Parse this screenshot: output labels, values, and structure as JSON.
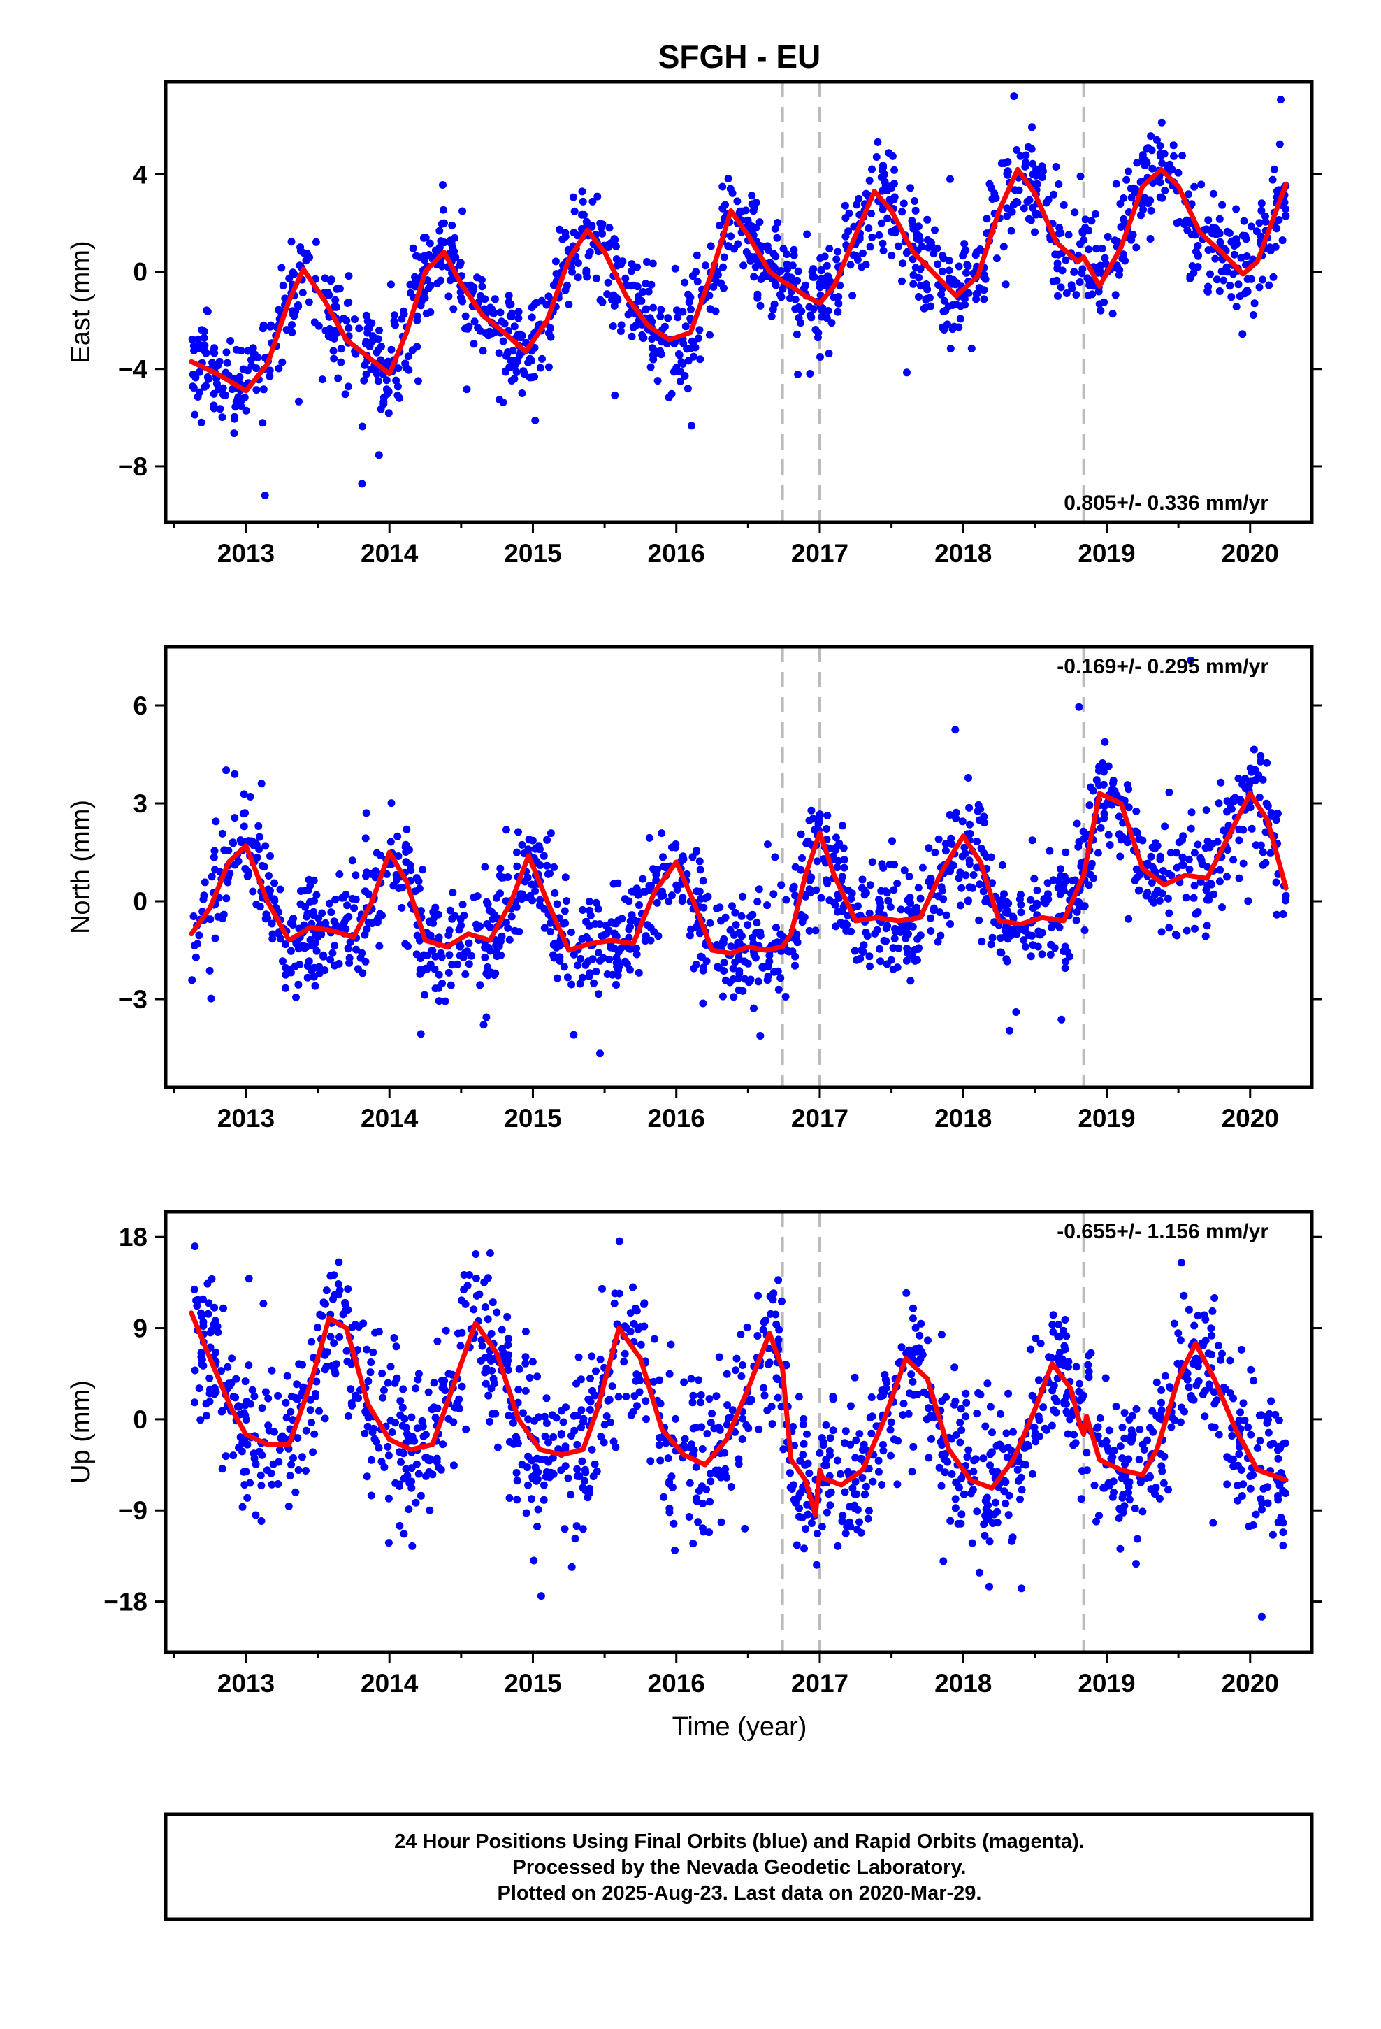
{
  "figure": {
    "title": "SFGH - EU",
    "xlabel": "Time (year)",
    "footer": [
      "24 Hour Positions Using Final Orbits (blue) and Rapid Orbits (magenta).",
      "Processed by the Nevada Geodetic Laboratory.",
      "Plotted on 2025-Aug-23. Last data on 2020-Mar-29."
    ],
    "colors": {
      "points": "#0000ff",
      "fit": "#ff0000",
      "breaks": "#bbbbbb"
    }
  },
  "chart_data": [
    {
      "type": "scatter",
      "name": "east",
      "ylabel": "East (mm)",
      "rate_label": "0.805+/- 0.336 mm/yr",
      "rate_placement": "bottom-right",
      "xlim": [
        2012.44,
        2020.43
      ],
      "ylim": [
        -10.3,
        7.8
      ],
      "xticks": [
        2013,
        2014,
        2015,
        2016,
        2017,
        2018,
        2019,
        2020
      ],
      "yticks": [
        4,
        0,
        -4,
        -8
      ],
      "break_lines": [
        2016.74,
        2017.0,
        2018.84
      ],
      "fit_line": {
        "x": [
          2012.62,
          2012.8,
          2013.0,
          2013.15,
          2013.3,
          2013.4,
          2013.55,
          2013.7,
          2013.85,
          2014.0,
          2014.12,
          2014.25,
          2014.38,
          2014.5,
          2014.65,
          2014.8,
          2014.95,
          2015.1,
          2015.25,
          2015.38,
          2015.5,
          2015.65,
          2015.8,
          2015.95,
          2016.1,
          2016.25,
          2016.38,
          2016.5,
          2016.65,
          2016.74,
          2016.8,
          2016.9,
          2017.0,
          2017.1,
          2017.25,
          2017.38,
          2017.5,
          2017.65,
          2017.8,
          2017.95,
          2018.1,
          2018.25,
          2018.38,
          2018.5,
          2018.65,
          2018.8,
          2018.84,
          2018.95,
          2019.1,
          2019.25,
          2019.38,
          2019.5,
          2019.65,
          2019.8,
          2019.95,
          2020.05,
          2020.15,
          2020.25
        ],
        "y": [
          -3.7,
          -4.2,
          -4.9,
          -3.8,
          -1.2,
          0.1,
          -1.2,
          -2.8,
          -3.5,
          -4.2,
          -2.5,
          0.0,
          0.8,
          -0.5,
          -1.8,
          -2.5,
          -3.3,
          -2.0,
          0.5,
          1.7,
          0.8,
          -1.0,
          -2.2,
          -2.8,
          -2.5,
          0.0,
          2.5,
          1.5,
          0.0,
          -0.4,
          -0.6,
          -1.0,
          -1.3,
          -0.6,
          1.5,
          3.3,
          2.5,
          0.8,
          -0.1,
          -1.0,
          -0.2,
          2.5,
          4.2,
          3.2,
          1.2,
          0.4,
          0.6,
          -0.6,
          1.0,
          3.5,
          4.2,
          3.5,
          1.6,
          0.8,
          -0.1,
          0.4,
          2.0,
          3.6
        ]
      }
    },
    {
      "type": "scatter",
      "name": "north",
      "ylabel": "North (mm)",
      "rate_label": "-0.169+/- 0.295 mm/yr",
      "rate_placement": "top-right",
      "xlim": [
        2012.44,
        2020.43
      ],
      "ylim": [
        -5.7,
        7.8
      ],
      "xticks": [
        2013,
        2014,
        2015,
        2016,
        2017,
        2018,
        2019,
        2020
      ],
      "yticks": [
        6,
        3,
        0,
        -3
      ],
      "break_lines": [
        2016.74,
        2017.0,
        2018.84
      ],
      "fit_line": {
        "x": [
          2012.62,
          2012.75,
          2012.88,
          2013.0,
          2013.15,
          2013.3,
          2013.45,
          2013.6,
          2013.75,
          2013.88,
          2014.0,
          2014.12,
          2014.25,
          2014.4,
          2014.55,
          2014.7,
          2014.85,
          2014.97,
          2015.1,
          2015.25,
          2015.4,
          2015.55,
          2015.7,
          2015.85,
          2016.0,
          2016.12,
          2016.25,
          2016.38,
          2016.5,
          2016.62,
          2016.74,
          2016.8,
          2016.9,
          2017.0,
          2017.1,
          2017.25,
          2017.4,
          2017.55,
          2017.7,
          2017.85,
          2018.0,
          2018.12,
          2018.25,
          2018.4,
          2018.55,
          2018.7,
          2018.84,
          2018.95,
          2019.1,
          2019.25,
          2019.4,
          2019.55,
          2019.7,
          2019.85,
          2020.0,
          2020.12,
          2020.25
        ],
        "y": [
          -1.0,
          -0.2,
          1.2,
          1.7,
          0.0,
          -1.2,
          -0.8,
          -0.9,
          -1.1,
          0.0,
          1.5,
          0.6,
          -1.2,
          -1.4,
          -1.0,
          -1.2,
          0.0,
          1.4,
          0.0,
          -1.5,
          -1.3,
          -1.2,
          -1.3,
          0.3,
          1.2,
          0.0,
          -1.5,
          -1.6,
          -1.4,
          -1.5,
          -1.4,
          -1.0,
          0.8,
          2.1,
          0.8,
          -0.6,
          -0.5,
          -0.6,
          -0.5,
          0.9,
          2.0,
          1.2,
          -0.6,
          -0.7,
          -0.5,
          -0.6,
          0.8,
          3.3,
          3.0,
          1.0,
          0.5,
          0.8,
          0.7,
          2.0,
          3.3,
          2.5,
          0.4
        ]
      }
    },
    {
      "type": "scatter",
      "name": "up",
      "ylabel": "Up (mm)",
      "rate_label": "-0.655+/- 1.156 mm/yr",
      "rate_placement": "top-right",
      "xlim": [
        2012.44,
        2020.43
      ],
      "ylim": [
        -23.0,
        20.5
      ],
      "xticks": [
        2013,
        2014,
        2015,
        2016,
        2017,
        2018,
        2019,
        2020
      ],
      "yticks": [
        18,
        9,
        0,
        -9,
        -18
      ],
      "break_lines": [
        2016.74,
        2017.0,
        2018.84
      ],
      "fit_line": {
        "x": [
          2012.62,
          2012.75,
          2012.9,
          2013.0,
          2013.15,
          2013.3,
          2013.45,
          2013.58,
          2013.7,
          2013.85,
          2014.0,
          2014.15,
          2014.3,
          2014.45,
          2014.6,
          2014.75,
          2014.9,
          2015.05,
          2015.2,
          2015.35,
          2015.45,
          2015.6,
          2015.75,
          2015.9,
          2016.05,
          2016.2,
          2016.35,
          2016.5,
          2016.65,
          2016.74,
          2016.8,
          2016.9,
          2016.97,
          2017.0,
          2017.02,
          2017.15,
          2017.3,
          2017.45,
          2017.6,
          2017.75,
          2017.9,
          2018.05,
          2018.2,
          2018.35,
          2018.5,
          2018.62,
          2018.75,
          2018.82,
          2018.84,
          2018.86,
          2018.95,
          2019.1,
          2019.25,
          2019.35,
          2019.5,
          2019.62,
          2019.75,
          2019.9,
          2020.05,
          2020.25
        ],
        "y": [
          10.5,
          6.0,
          1.0,
          -1.5,
          -2.5,
          -2.5,
          3.5,
          10.0,
          9.0,
          1.5,
          -2.0,
          -3.0,
          -2.5,
          3.5,
          9.5,
          6.5,
          0.0,
          -3.0,
          -3.5,
          -3.0,
          1.0,
          9.0,
          6.0,
          -1.0,
          -3.5,
          -4.5,
          -2.0,
          3.0,
          8.5,
          5.0,
          -4.0,
          -6.0,
          -9.5,
          -5.0,
          -5.8,
          -6.5,
          -5.0,
          0.0,
          6.0,
          4.0,
          -3.0,
          -6.0,
          -6.8,
          -4.0,
          1.0,
          5.5,
          3.0,
          -0.8,
          -1.5,
          0.3,
          -4.0,
          -5.0,
          -5.5,
          -3.0,
          4.0,
          7.5,
          4.0,
          -1.0,
          -5.0,
          -6.0
        ]
      }
    }
  ]
}
